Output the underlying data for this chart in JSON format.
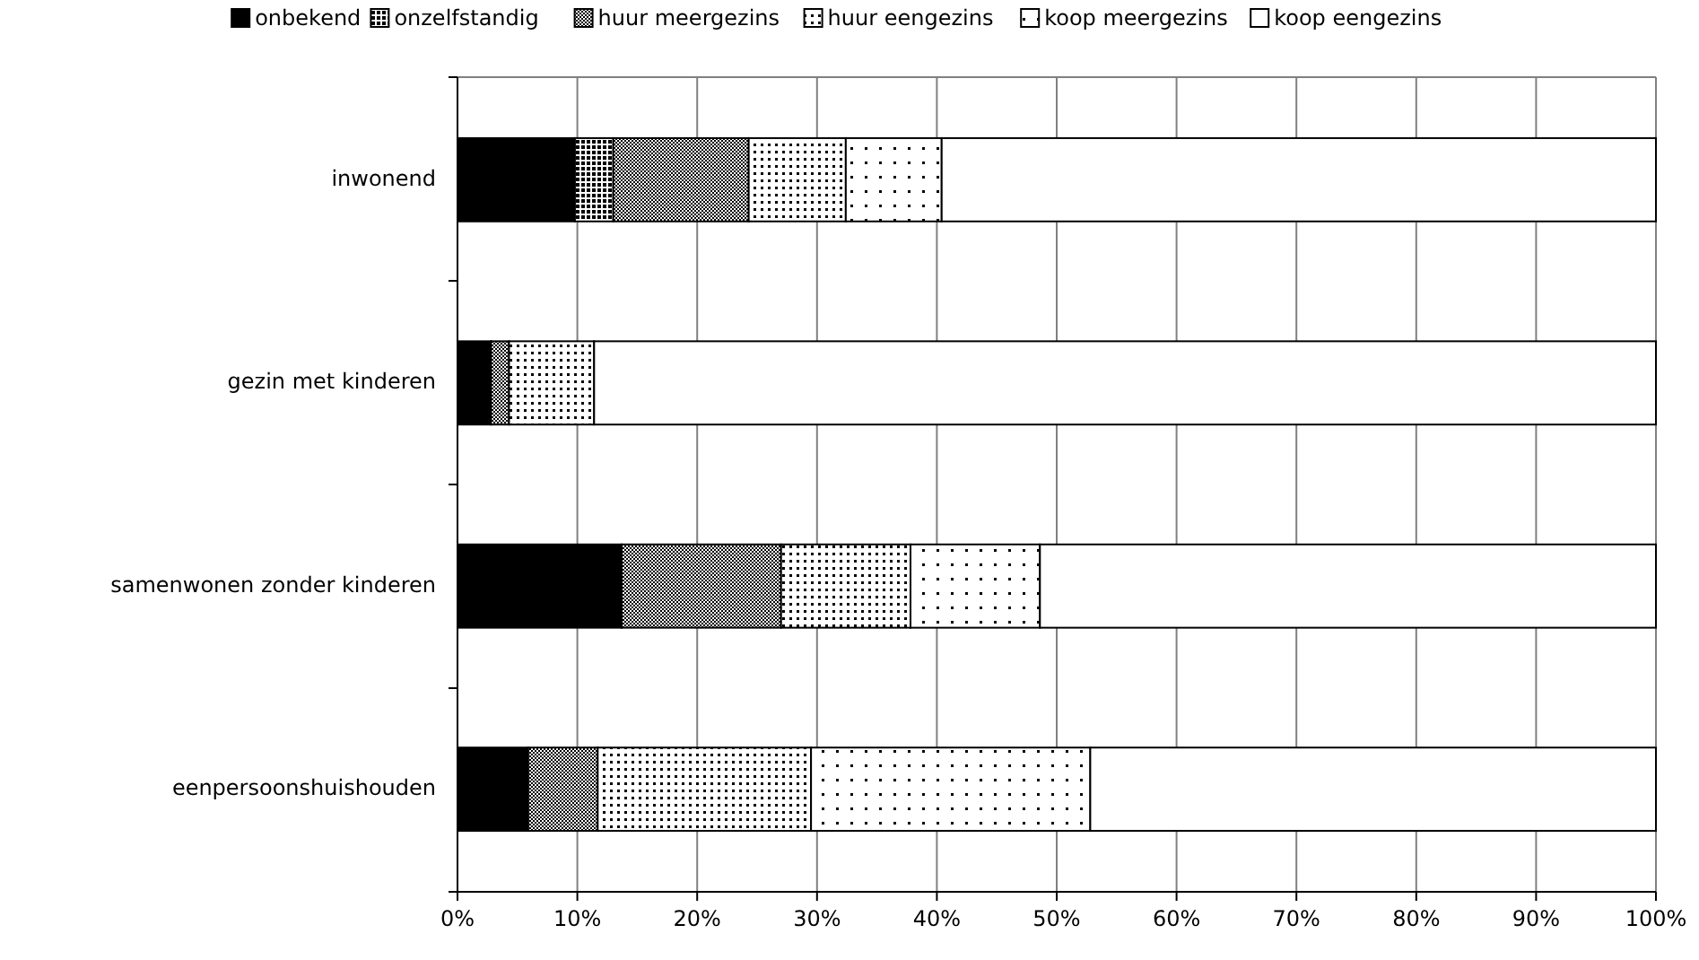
{
  "chart_data": {
    "type": "bar",
    "orientation": "horizontal",
    "stacked": true,
    "categories": [
      "inwonend",
      "gezin met kinderen",
      "samenwonen zonder kinderen",
      "eenpersoonshuishouden"
    ],
    "series": [
      {
        "name": "onbekend",
        "color": "#000000",
        "values": [
          9.8,
          2.8,
          13.7,
          5.9
        ]
      },
      {
        "name": "onzelfstandig",
        "color": "#000000",
        "values": [
          3.2,
          0,
          0,
          0
        ]
      },
      {
        "name": "huur meergezins",
        "color": "#000000",
        "values": [
          11.3,
          1.5,
          13.3,
          5.8
        ]
      },
      {
        "name": "huur eengezins",
        "color": "#000000",
        "values": [
          8.1,
          7.1,
          10.8,
          17.8
        ]
      },
      {
        "name": "koop meergezins",
        "color": "#000000",
        "values": [
          8,
          0,
          10.8,
          23.3
        ]
      },
      {
        "name": "koop eengezins",
        "color": "#ffffff",
        "values": [
          59.6,
          88.6,
          51.4,
          47.2
        ]
      }
    ],
    "xlim": [
      0,
      100
    ],
    "xticks": [
      {
        "value": 0,
        "label": "0%"
      },
      {
        "value": 10,
        "label": "10%"
      },
      {
        "value": 20,
        "label": "20%"
      },
      {
        "value": 30,
        "label": "30%"
      },
      {
        "value": 40,
        "label": "40%"
      },
      {
        "value": 50,
        "label": "50%"
      },
      {
        "value": 60,
        "label": "60%"
      },
      {
        "value": 70,
        "label": "70%"
      },
      {
        "value": 80,
        "label": "80%"
      },
      {
        "value": 90,
        "label": "90%"
      },
      {
        "value": 100,
        "label": "100%"
      }
    ],
    "grid": "x",
    "legend": "top"
  }
}
